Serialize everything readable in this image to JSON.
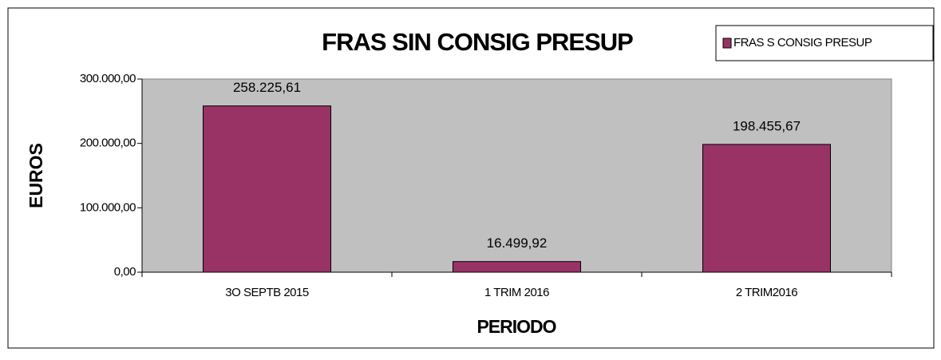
{
  "chart_data": {
    "type": "bar",
    "title": "FRAS SIN CONSIG PRESUP",
    "x_label": "PERIODO",
    "y_label": "EUROS",
    "categories": [
      "3O SEPTB 2015",
      "1 TRIM 2016",
      "2 TRIM2016"
    ],
    "series": [
      {
        "name": "FRAS S CONSIG PRESUP",
        "color": "#993366",
        "values": [
          258225.61,
          16499.92,
          198455.67
        ],
        "value_labels": [
          "258.225,61",
          "16.499,92",
          "198.455,67"
        ]
      }
    ],
    "ylim": [
      0,
      300000
    ],
    "yticks": [
      {
        "value": 0,
        "label": "0,00"
      },
      {
        "value": 100000,
        "label": "100.000,00"
      },
      {
        "value": 200000,
        "label": "200.000,00"
      },
      {
        "value": 300000,
        "label": "300.000,00"
      }
    ],
    "grid": false,
    "legend": "top-right",
    "plot_background": "#c0c0c0"
  }
}
